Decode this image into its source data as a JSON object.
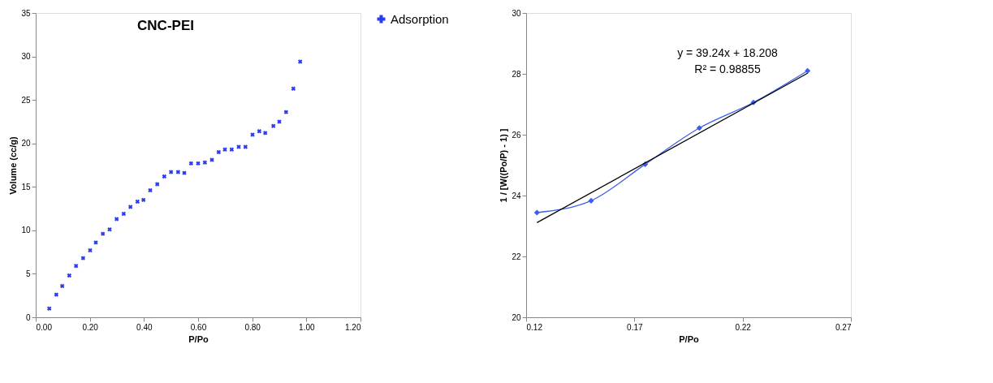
{
  "chart_data": [
    {
      "type": "scatter",
      "title": "CNC-PEI",
      "xlabel": "P/Po",
      "ylabel": "Volume (cc/g)",
      "xlim": [
        0,
        1.2
      ],
      "xticks": [
        {
          "value": 0,
          "label": "0.00"
        },
        {
          "value": 0.2,
          "label": "0.20"
        },
        {
          "value": 0.4,
          "label": "0.40"
        },
        {
          "value": 0.6,
          "label": "0.60"
        },
        {
          "value": 0.8,
          "label": "0.80"
        },
        {
          "value": 1,
          "label": "1.00"
        },
        {
          "value": 1.2,
          "label": "1.20"
        }
      ],
      "ylim": [
        0,
        35
      ],
      "yticks": [
        0,
        5,
        10,
        15,
        20,
        25,
        30,
        35
      ],
      "grid": false,
      "legend": "right",
      "marker": "cross",
      "series": [
        {
          "name": "Adsorption",
          "color": "#2a3cf0",
          "x": [
            0.05,
            0.076,
            0.098,
            0.124,
            0.149,
            0.175,
            0.201,
            0.222,
            0.248,
            0.273,
            0.299,
            0.325,
            0.35,
            0.376,
            0.398,
            0.423,
            0.449,
            0.475,
            0.5,
            0.526,
            0.549,
            0.574,
            0.6,
            0.625,
            0.651,
            0.676,
            0.699,
            0.724,
            0.75,
            0.775,
            0.801,
            0.826,
            0.848,
            0.878,
            0.9,
            0.925,
            0.952,
            0.977
          ],
          "values": [
            1.0,
            2.6,
            3.6,
            4.8,
            5.9,
            6.8,
            7.7,
            8.6,
            9.6,
            10.1,
            11.3,
            11.9,
            12.7,
            13.3,
            13.5,
            14.6,
            15.3,
            16.2,
            16.7,
            16.7,
            16.6,
            17.7,
            17.7,
            17.8,
            18.1,
            19.0,
            19.3,
            19.3,
            19.6,
            19.6,
            21.0,
            21.4,
            21.2,
            22.0,
            22.5,
            23.6,
            26.3,
            29.4
          ]
        }
      ]
    },
    {
      "type": "line",
      "xlabel": "P/Po",
      "ylabel": "1 / [W((Po/P) - 1) ]",
      "xlim": [
        0.12,
        0.27
      ],
      "xticks": [
        0.12,
        0.17,
        0.22,
        0.27
      ],
      "ylim": [
        20,
        30
      ],
      "yticks": [
        20,
        22,
        24,
        26,
        28,
        30
      ],
      "grid": false,
      "marker": "diamond",
      "series": [
        {
          "color": "#3a5cf0",
          "x": [
            0.125,
            0.15,
            0.175,
            0.2,
            0.225,
            0.25
          ],
          "values": [
            23.44,
            23.83,
            25.03,
            26.22,
            27.06,
            28.1
          ]
        },
        {
          "color": "#000000",
          "marker": "none",
          "x": [
            0.125,
            0.25
          ],
          "values": [
            23.11,
            28.02
          ]
        }
      ],
      "annotations": [
        "y = 39.24x + 18.208",
        "R² = 0.98855"
      ]
    }
  ]
}
